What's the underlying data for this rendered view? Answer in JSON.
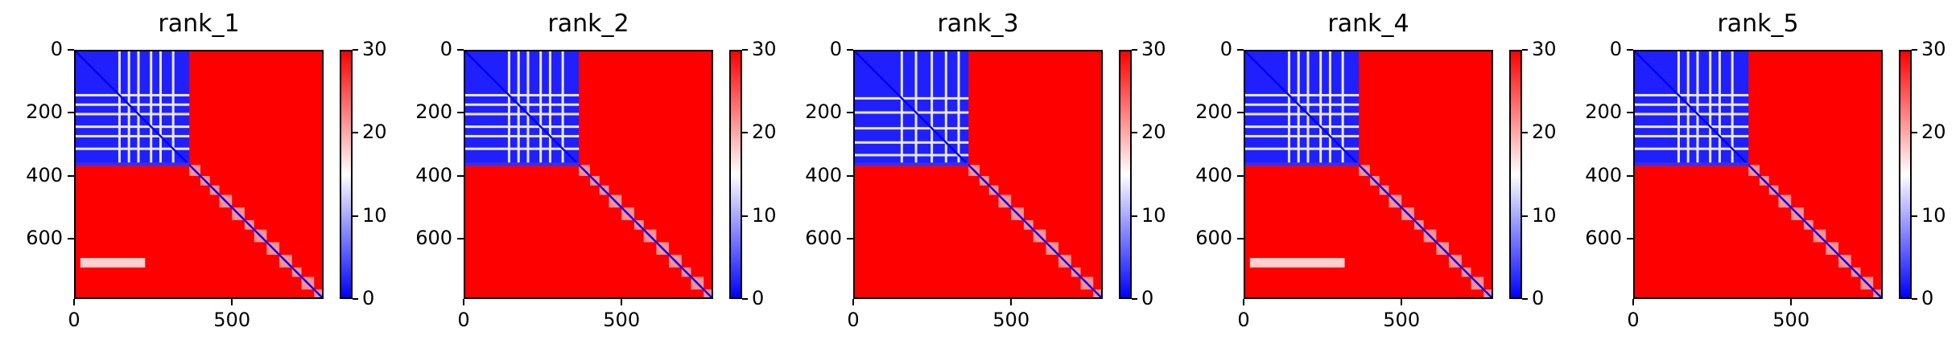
{
  "chart_data": {
    "type": "heatmap",
    "colormap": "bwr",
    "colors": {
      "low": "#0000ff",
      "mid": "#ffffff",
      "high": "#ff0000"
    },
    "matrix_size": 790,
    "domain_split": 365,
    "xlim": [
      0,
      790
    ],
    "ylim": [
      790,
      0
    ],
    "x_ticks": [
      0,
      500
    ],
    "y_ticks": [
      0,
      200,
      400,
      600
    ],
    "colorbar": {
      "range": [
        0,
        30
      ],
      "ticks": [
        0,
        10,
        20,
        30
      ]
    },
    "panels": [
      {
        "title": "rank_1",
        "low_blocks": [
          [
            0,
            365,
            0,
            365
          ]
        ],
        "gap_lines": [
          140,
          170,
          200,
          240,
          270,
          310
        ],
        "stripes": [
          [
            660,
            690,
            20,
            225
          ]
        ]
      },
      {
        "title": "rank_2",
        "low_blocks": [
          [
            0,
            365,
            0,
            365
          ]
        ],
        "gap_lines": [
          140,
          170,
          200,
          240,
          270,
          310
        ],
        "stripes": []
      },
      {
        "title": "rank_3",
        "low_blocks": [
          [
            0,
            365,
            0,
            365
          ]
        ],
        "gap_lines": [
          150,
          195,
          245,
          290,
          330
        ],
        "stripes": []
      },
      {
        "title": "rank_4",
        "low_blocks": [
          [
            0,
            365,
            0,
            365
          ]
        ],
        "gap_lines": [
          140,
          170,
          200,
          240,
          270,
          310
        ],
        "stripes": [
          [
            660,
            690,
            20,
            320
          ]
        ]
      },
      {
        "title": "rank_5",
        "low_blocks": [
          [
            0,
            365,
            0,
            365
          ]
        ],
        "gap_lines": [
          140,
          170,
          200,
          240,
          270,
          310
        ],
        "stripes": []
      }
    ],
    "diagonal_blocks": [
      365,
      400,
      430,
      460,
      500,
      540,
      570,
      610,
      650,
      690,
      720,
      760,
      790
    ]
  }
}
